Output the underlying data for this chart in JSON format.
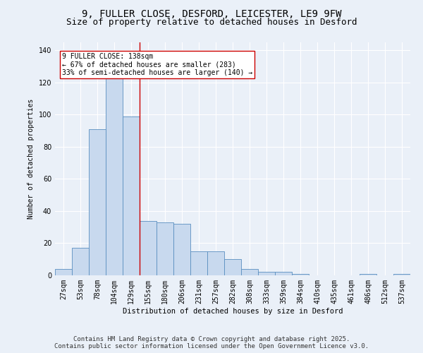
{
  "title": "9, FULLER CLOSE, DESFORD, LEICESTER, LE9 9FW",
  "subtitle": "Size of property relative to detached houses in Desford",
  "xlabel": "Distribution of detached houses by size in Desford",
  "ylabel": "Number of detached properties",
  "bar_labels": [
    "27sqm",
    "53sqm",
    "78sqm",
    "104sqm",
    "129sqm",
    "155sqm",
    "180sqm",
    "206sqm",
    "231sqm",
    "257sqm",
    "282sqm",
    "308sqm",
    "333sqm",
    "359sqm",
    "384sqm",
    "410sqm",
    "435sqm",
    "461sqm",
    "486sqm",
    "512sqm",
    "537sqm"
  ],
  "bar_values": [
    4,
    17,
    91,
    125,
    99,
    34,
    33,
    32,
    15,
    15,
    10,
    4,
    2,
    2,
    1,
    0,
    0,
    0,
    1,
    0,
    1
  ],
  "bar_color": "#c8d9ee",
  "bar_edge_color": "#5a8fc0",
  "background_color": "#eaf0f8",
  "grid_color": "#ffffff",
  "vline_x": 4.5,
  "vline_color": "#cc0000",
  "annotation_text": "9 FULLER CLOSE: 138sqm\n← 67% of detached houses are smaller (283)\n33% of semi-detached houses are larger (140) →",
  "annotation_box_color": "#ffffff",
  "annotation_box_edge": "#cc0000",
  "footer1": "Contains HM Land Registry data © Crown copyright and database right 2025.",
  "footer2": "Contains public sector information licensed under the Open Government Licence v3.0.",
  "ylim": [
    0,
    145
  ],
  "title_fontsize": 10,
  "subtitle_fontsize": 9,
  "label_fontsize": 7,
  "footer_fontsize": 6.5
}
